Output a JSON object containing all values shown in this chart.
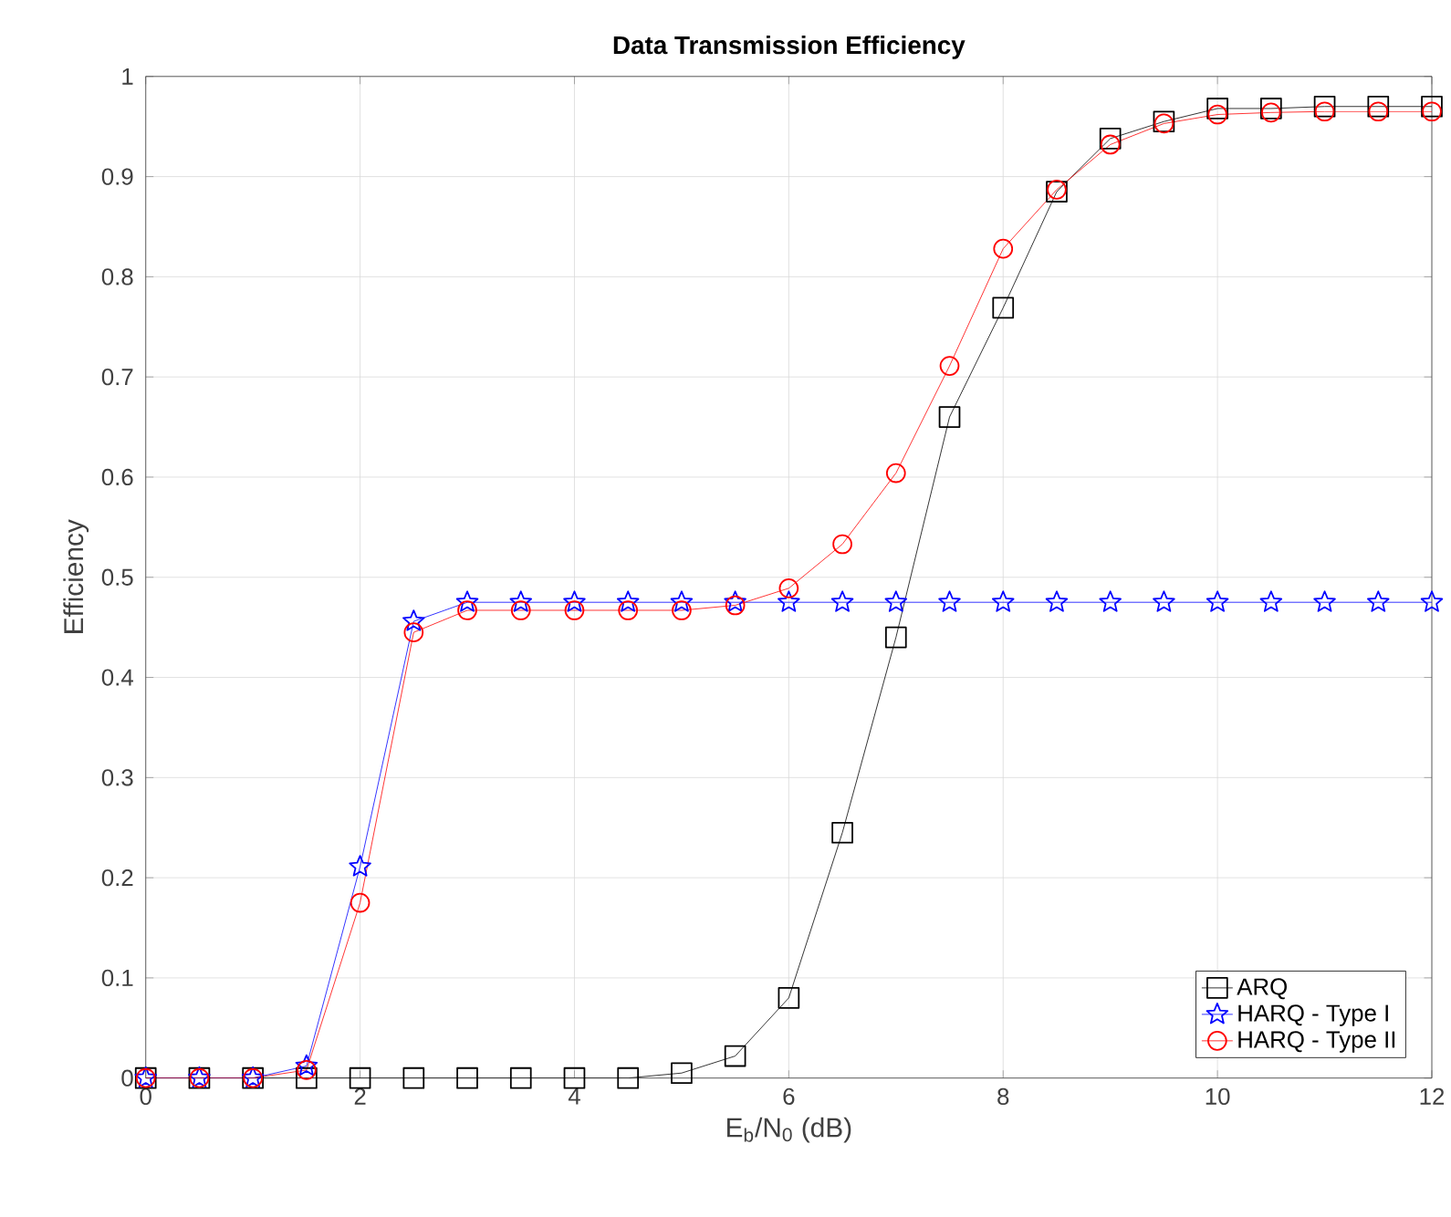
{
  "chart_data": {
    "type": "line",
    "title": "Data Transmission Efficiency",
    "xlabel": "E$_{b}$/N$_{0}$ (dB)",
    "ylabel": "Efficiency",
    "x": [
      0,
      0.5,
      1,
      1.5,
      2,
      2.5,
      3,
      3.5,
      4,
      4.5,
      5,
      5.5,
      6,
      6.5,
      7,
      7.5,
      8,
      8.5,
      9,
      9.5,
      10,
      10.5,
      11,
      11.5,
      12
    ],
    "series": [
      {
        "name": "ARQ",
        "color": "#000000",
        "marker": "square",
        "values": [
          0,
          0,
          0,
          0,
          0,
          0,
          0,
          0,
          0,
          0,
          0.005,
          0.022,
          0.08,
          0.245,
          0.44,
          0.66,
          0.769,
          0.885,
          0.938,
          0.955,
          0.968,
          0.968,
          0.97,
          0.97,
          0.97
        ]
      },
      {
        "name": "HARQ - Type I",
        "color": "#0000ff",
        "marker": "star",
        "values": [
          0,
          0,
          0,
          0.012,
          0.211,
          0.456,
          0.475,
          0.475,
          0.475,
          0.475,
          0.475,
          0.475,
          0.475,
          0.475,
          0.475,
          0.475,
          0.475,
          0.475,
          0.475,
          0.475,
          0.475,
          0.475,
          0.475,
          0.475,
          0.475
        ]
      },
      {
        "name": "HARQ - Type II",
        "color": "#ff0000",
        "marker": "circle",
        "values": [
          0,
          0,
          0,
          0.008,
          0.175,
          0.445,
          0.467,
          0.467,
          0.467,
          0.467,
          0.467,
          0.472,
          0.489,
          0.533,
          0.604,
          0.711,
          0.828,
          0.887,
          0.932,
          0.953,
          0.962,
          0.964,
          0.965,
          0.965,
          0.965
        ]
      }
    ],
    "xlim": [
      0,
      12
    ],
    "ylim": [
      0,
      1
    ],
    "xticks": [
      0,
      2,
      4,
      6,
      8,
      10,
      12
    ],
    "yticks": [
      0,
      0.1,
      0.2,
      0.3,
      0.4,
      0.5,
      0.6,
      0.7,
      0.8,
      0.9,
      1
    ],
    "grid": true,
    "legend": "bottom right"
  }
}
